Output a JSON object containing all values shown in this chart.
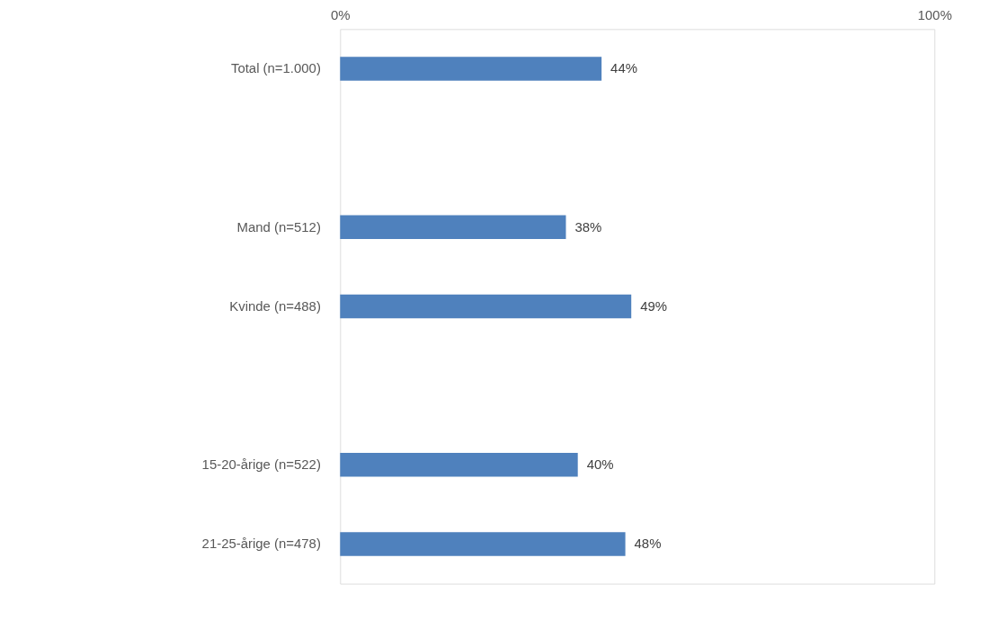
{
  "chart_data": {
    "type": "bar",
    "orientation": "horizontal",
    "categories": [
      "Total (n=1.000)",
      null,
      "Mand (n=512)",
      "Kvinde (n=488)",
      null,
      "15-20-årige (n=522)",
      "21-25-årige (n=478)"
    ],
    "values": [
      44,
      null,
      38,
      49,
      null,
      40,
      48
    ],
    "value_labels": [
      "44%",
      null,
      "38%",
      "49%",
      null,
      "40%",
      "48%"
    ],
    "color": "#4f81bd",
    "xlim": [
      0,
      100
    ],
    "xticks": [
      {
        "value": 0,
        "label": "0%"
      },
      {
        "value": 100,
        "label": "100%"
      }
    ]
  }
}
